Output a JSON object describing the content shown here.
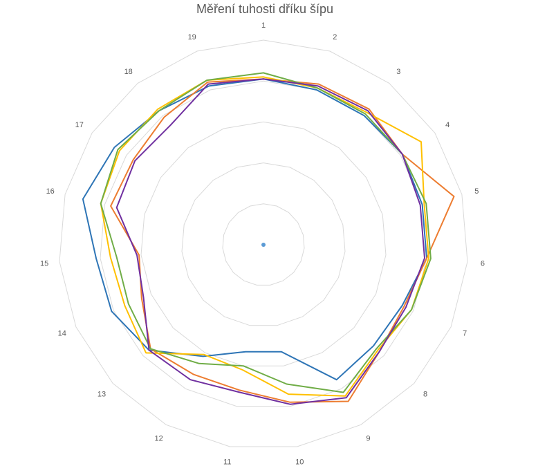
{
  "chart_data": {
    "type": "radar",
    "title": "Měření tuhosti dříku šípu",
    "categories": [
      "1",
      "2",
      "3",
      "4",
      "5",
      "6",
      "7",
      "8",
      "9",
      "10",
      "11",
      "12",
      "13",
      "14",
      "15",
      "16",
      "17",
      "18",
      "19"
    ],
    "rlim": [
      0,
      10
    ],
    "rings": 5,
    "grid": true,
    "legend": "none",
    "series": [
      {
        "color": "#2e75b6",
        "values": [
          8.1,
          8.0,
          8.0,
          8.1,
          8.0,
          8.0,
          7.4,
          7.3,
          7.5,
          5.3,
          5.3,
          6.2,
          7.6,
          8.1,
          8.2,
          9.1,
          8.7,
          8.3,
          8.2
        ]
      },
      {
        "color": "#ed7d31",
        "values": [
          8.1,
          8.3,
          8.4,
          8.1,
          9.6,
          8.0,
          7.5,
          7.7,
          8.7,
          7.8,
          7.2,
          7.2,
          7.5,
          6.5,
          6.1,
          7.7,
          7.6,
          7.9,
          8.4
        ]
      },
      {
        "color": "#ffc000",
        "values": [
          8.2,
          8.1,
          8.2,
          9.2,
          8.1,
          8.1,
          7.9,
          7.6,
          8.4,
          7.4,
          6.2,
          6.1,
          7.8,
          7.4,
          7.5,
          8.2,
          8.4,
          8.4,
          8.5
        ]
      },
      {
        "color": "#70ad47",
        "values": [
          8.4,
          8.1,
          8.1,
          8.1,
          8.2,
          8.2,
          7.9,
          7.5,
          8.2,
          6.9,
          6.0,
          6.6,
          7.5,
          7.2,
          7.2,
          8.2,
          8.5,
          8.3,
          8.5
        ]
      },
      {
        "color": "#7030a0",
        "values": [
          8.1,
          8.2,
          8.3,
          8.1,
          7.9,
          7.9,
          7.6,
          7.7,
          8.5,
          7.9,
          7.3,
          7.5,
          7.6,
          6.4,
          6.2,
          7.4,
          7.5,
          7.4,
          8.3
        ]
      }
    ]
  }
}
